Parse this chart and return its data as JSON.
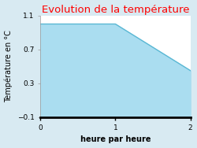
{
  "title": "Evolution de la température",
  "title_color": "#ff0000",
  "xlabel": "heure par heure",
  "ylabel": "Température en °C",
  "xlim": [
    0,
    2
  ],
  "ylim": [
    -0.1,
    1.1
  ],
  "xticks": [
    0,
    1,
    2
  ],
  "yticks": [
    -0.1,
    0.3,
    0.7,
    1.1
  ],
  "x": [
    0,
    1,
    2
  ],
  "y": [
    1.0,
    1.0,
    0.45
  ],
  "line_color": "#5bb8d4",
  "fill_color": "#aaddf0",
  "fill_alpha": 1.0,
  "background_color": "#d8eaf2",
  "plot_bg_color": "#ffffff",
  "line_width": 1.0,
  "title_fontsize": 9.5,
  "label_fontsize": 7,
  "tick_fontsize": 6.5
}
